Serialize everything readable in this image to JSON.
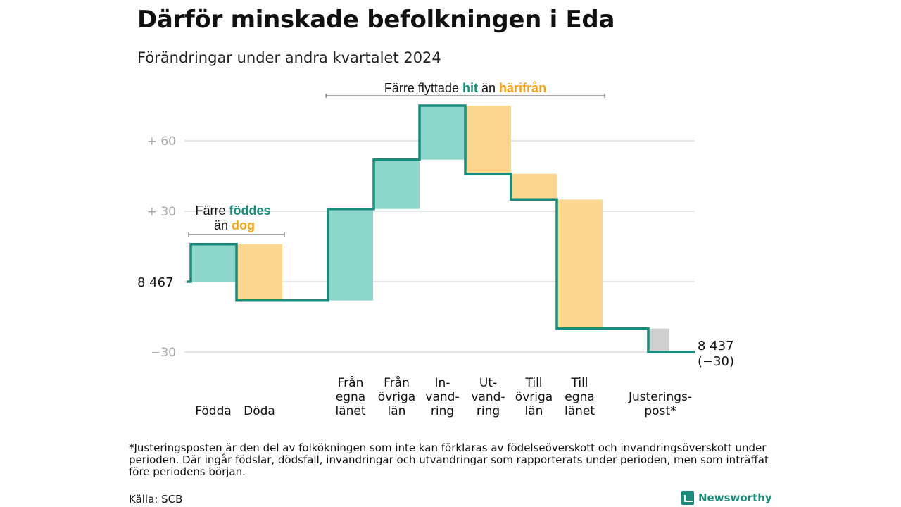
{
  "title": "Därför minskade befolkningen i Eda",
  "subtitle": "Förändringar under andra kvartalet 2024",
  "footnote": "*Justeringsposten är den del av folkökningen som inte kan förklaras av födelseöverskott och invandringsöverskott under perioden. Där ingår födslar, dödsfall, invandringar och utvandringar som rapporterats under perioden, men som inträffat före periodens början.",
  "source": "Källa: SCB",
  "brand": {
    "name": "Newsworthy"
  },
  "colors": {
    "in": "#8dd6cb",
    "out": "#fbd78f",
    "adjust": "#cfcfcf",
    "line": "#1a8c7c",
    "accent_orange": "#f2a51d",
    "grid": "#dddddd"
  },
  "annotations": {
    "migration": {
      "pre": "Färre flyttade",
      "hit": "hit",
      "mid": "än",
      "harifran": "härifrån"
    },
    "births": {
      "pre": "Färre",
      "fodde": "föddes",
      "an": "än",
      "dog": "dog"
    }
  },
  "chart_data": {
    "type": "waterfall",
    "title": "Därför minskade befolkningen i Eda",
    "subtitle": "Förändringar under andra kvartalet 2024",
    "start_label": "8 467",
    "start_value": 8467,
    "end_label": "8 437",
    "end_change_label": "(−30)",
    "end_value": 8437,
    "y_ticks": [
      {
        "value": 60,
        "label": "+ 60"
      },
      {
        "value": 30,
        "label": "+ 30"
      },
      {
        "value": -30,
        "label": "−30"
      }
    ],
    "ylim": [
      -30,
      75
    ],
    "steps": [
      {
        "label": [
          "",
          "",
          "Födda"
        ],
        "value": 16,
        "kind": "in"
      },
      {
        "label": [
          "",
          "",
          "Döda"
        ],
        "value": -24,
        "kind": "out"
      },
      {
        "label": [
          "Från",
          "egna",
          "länet"
        ],
        "value": 39,
        "kind": "in"
      },
      {
        "label": [
          "Från",
          "övriga",
          "län"
        ],
        "value": 21,
        "kind": "in"
      },
      {
        "label": [
          "In-",
          "vand-",
          "ring"
        ],
        "value": 23,
        "kind": "in"
      },
      {
        "label": [
          "Ut-",
          "vand-",
          "ring"
        ],
        "value": -29,
        "kind": "out"
      },
      {
        "label": [
          "Till",
          "övriga",
          "län"
        ],
        "value": -11,
        "kind": "out"
      },
      {
        "label": [
          "Till",
          "egna",
          "länet"
        ],
        "value": -55,
        "kind": "out"
      },
      {
        "label": [
          "",
          "Justerings-",
          "post*"
        ],
        "value": -10,
        "kind": "adjust"
      }
    ]
  }
}
